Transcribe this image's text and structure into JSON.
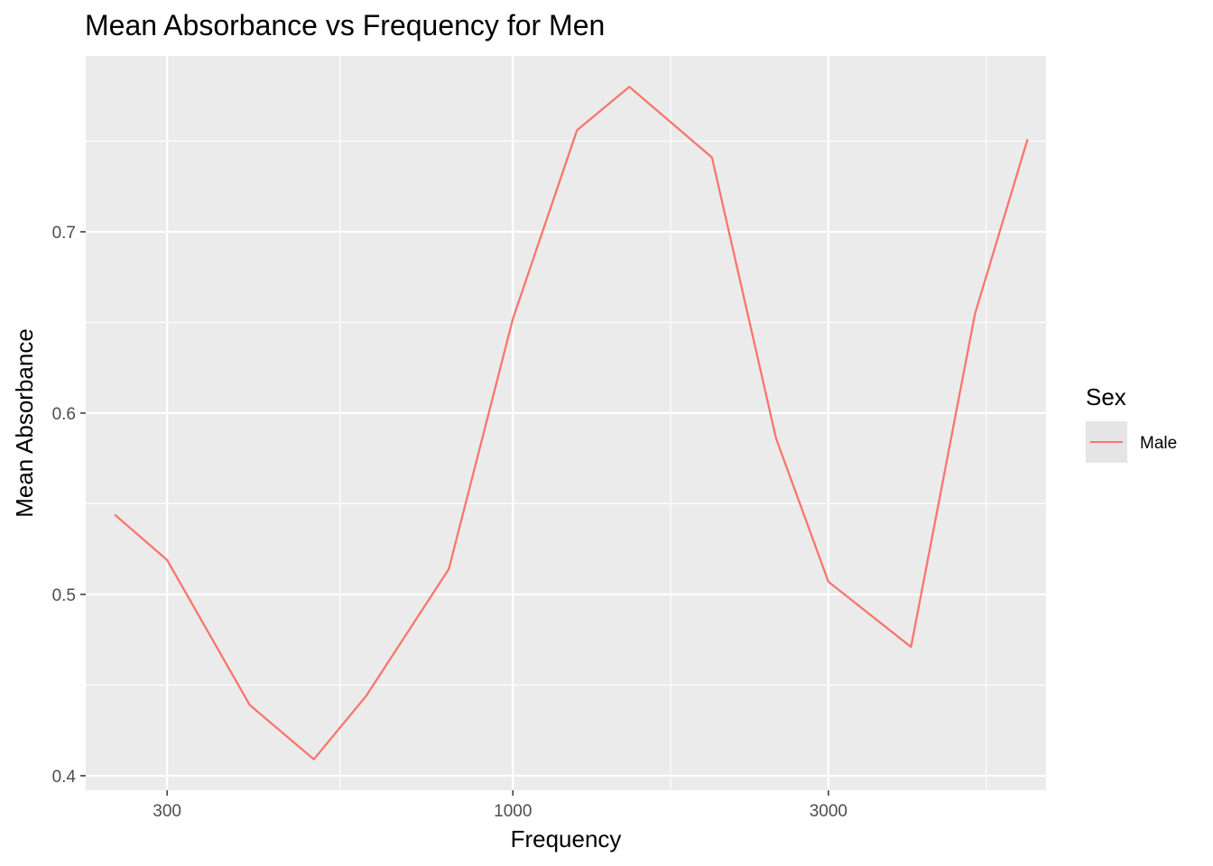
{
  "chart_data": {
    "type": "line",
    "title": "Mean Absorbance vs Frequency for Men",
    "xlabel": "Frequency",
    "ylabel": "Mean Absorbance",
    "x_scale": "log10",
    "xlim": [
      226,
      6400
    ],
    "ylim": [
      0.392,
      0.797
    ],
    "x_ticks": [
      300,
      1000,
      3000
    ],
    "x_tick_labels": [
      "300",
      "1000",
      "3000"
    ],
    "y_ticks": [
      0.4,
      0.5,
      0.6,
      0.7
    ],
    "y_tick_labels": [
      "0.4",
      "0.5",
      "0.6",
      "0.7"
    ],
    "grid": true,
    "legend": {
      "title": "Sex",
      "position": "right"
    },
    "series": [
      {
        "name": "Male",
        "color": "#F8766D",
        "x": [
          250,
          300,
          400,
          500,
          600,
          800,
          1000,
          1250,
          1500,
          2000,
          2500,
          3000,
          4000,
          5000,
          6000
        ],
        "y": [
          0.544,
          0.519,
          0.439,
          0.409,
          0.444,
          0.514,
          0.652,
          0.756,
          0.78,
          0.741,
          0.586,
          0.507,
          0.471,
          0.655,
          0.751
        ]
      }
    ]
  }
}
